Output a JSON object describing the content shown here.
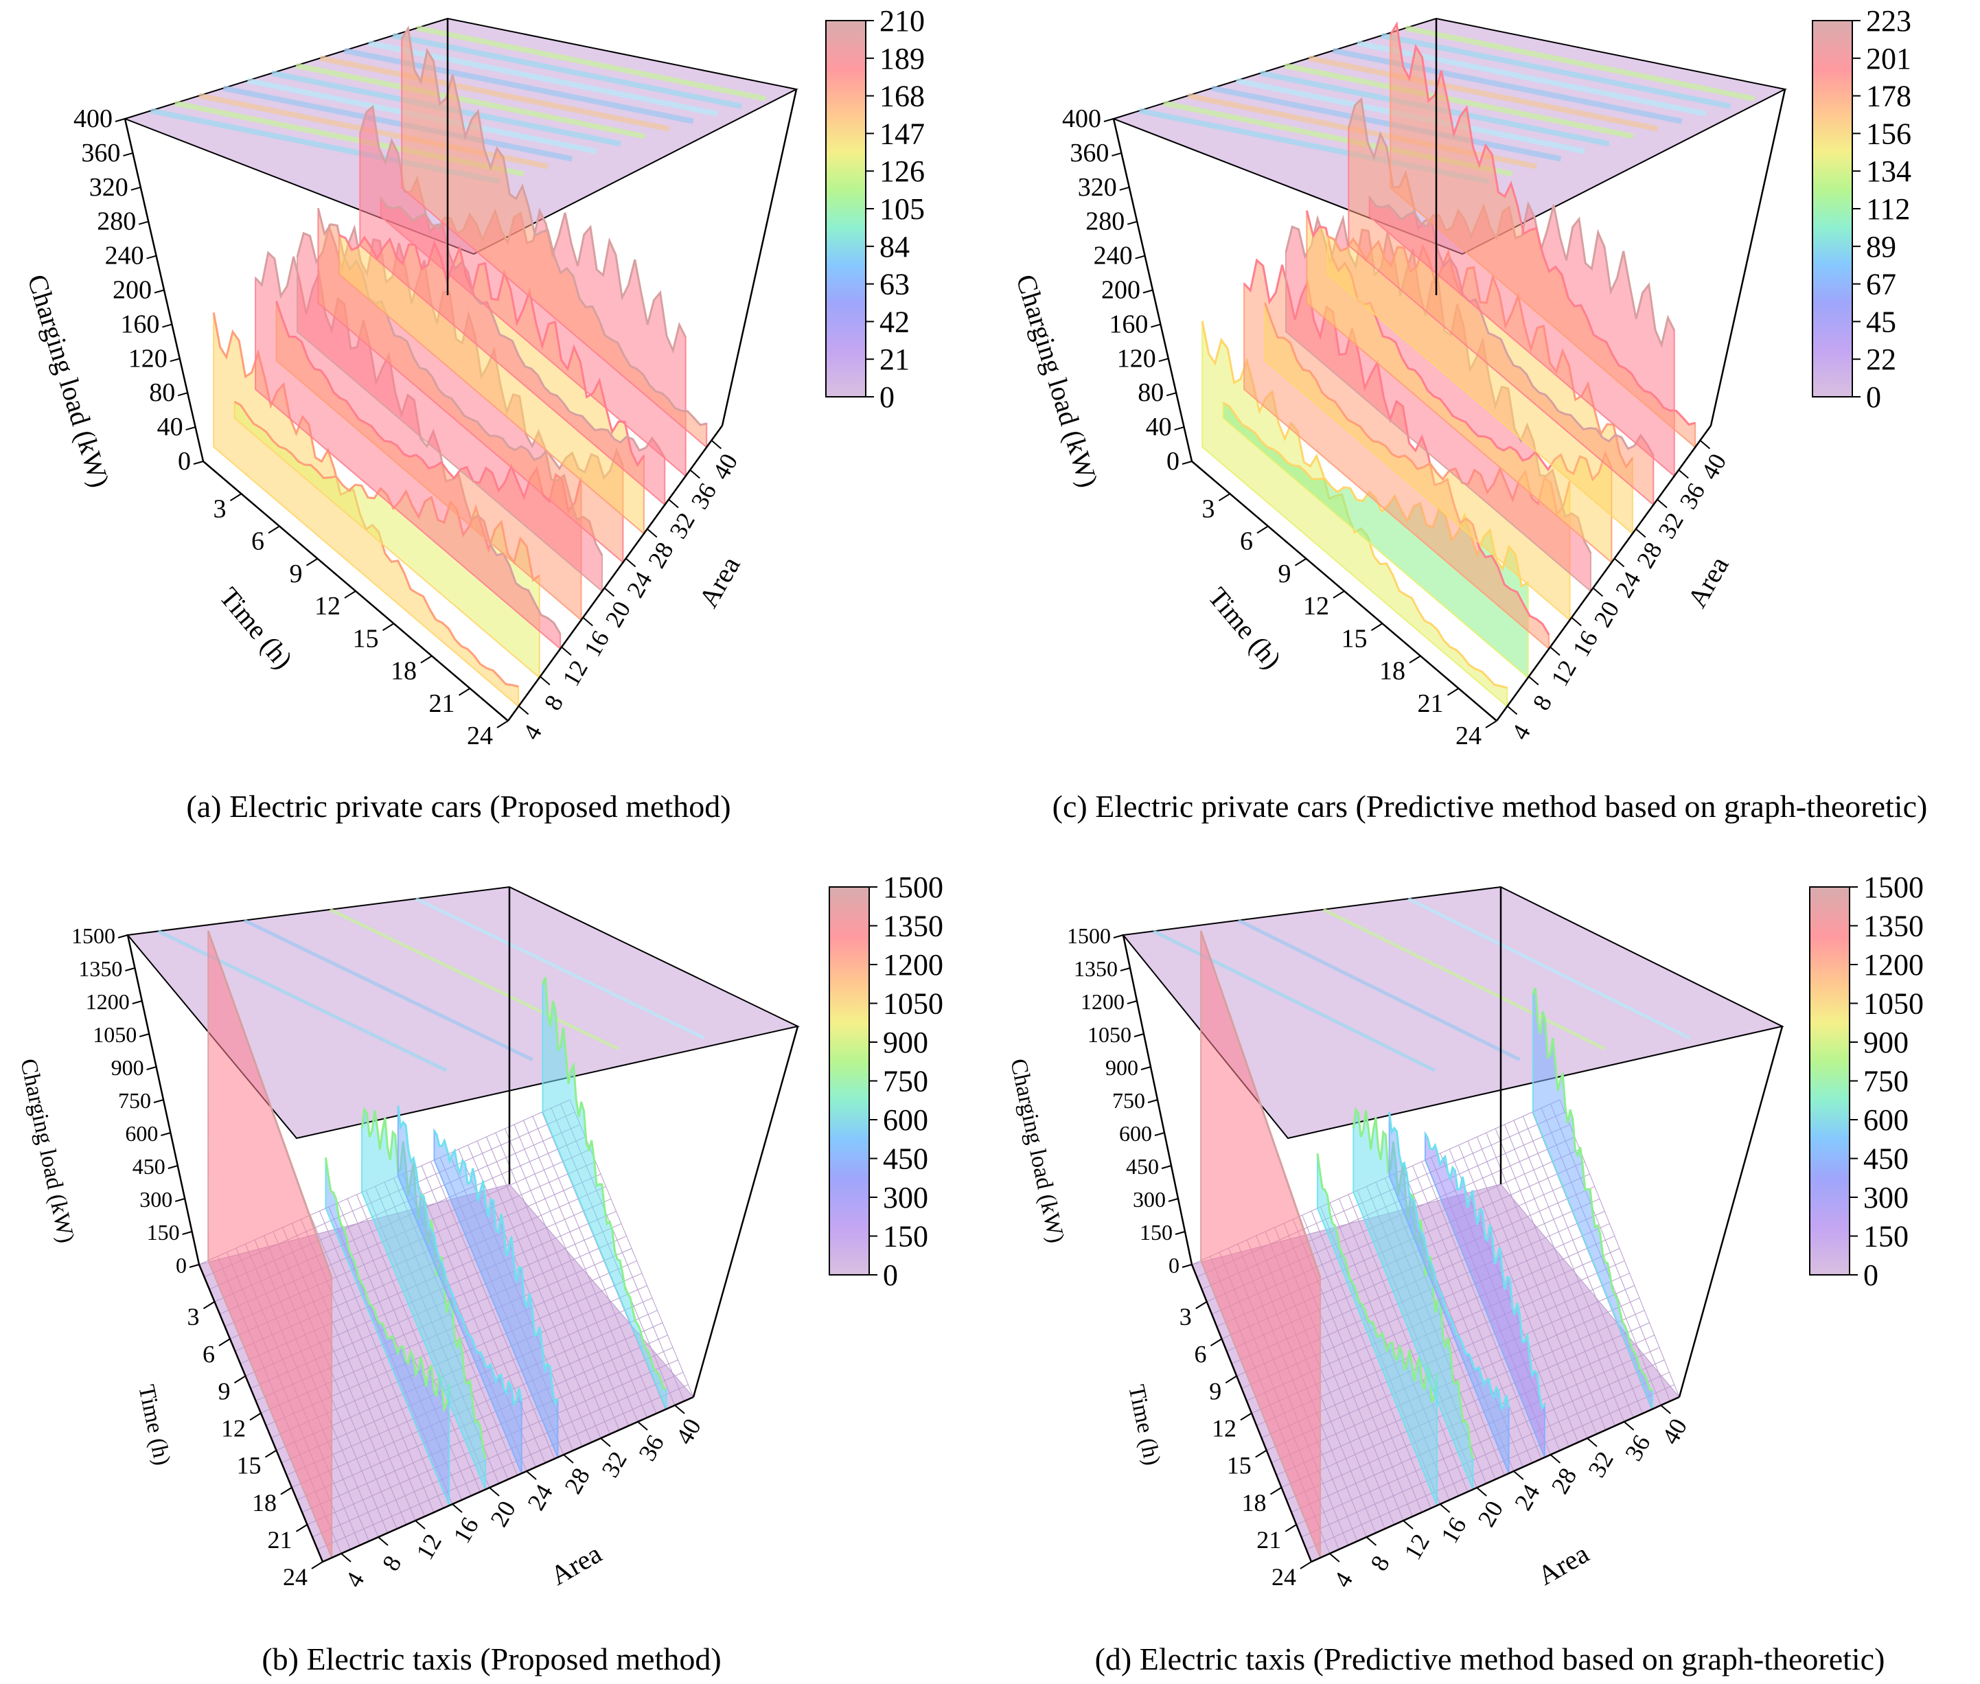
{
  "panels": [
    {
      "id": "a",
      "caption": "(a) Electric private cars (Proposed method)",
      "chart_data": {
        "type": "surface3d",
        "zlabel": "Charging load (kW)",
        "xlabel": "Time (h)",
        "ylabel": "Area",
        "zlim": [
          0,
          400
        ],
        "z_ticks": [
          "0",
          "40",
          "80",
          "120",
          "160",
          "200",
          "240",
          "280",
          "320",
          "360",
          "400"
        ],
        "time_ticks": [
          "3",
          "6",
          "9",
          "12",
          "15",
          "18",
          "21",
          "24"
        ],
        "area_ticks": [
          "4",
          "8",
          "12",
          "16",
          "20",
          "24",
          "28",
          "32",
          "36",
          "40"
        ],
        "colorbar": {
          "min": 0,
          "max": 210,
          "ticks": [
            "0",
            "21",
            "42",
            "63",
            "84",
            "105",
            "126",
            "147",
            "168",
            "189",
            "210"
          ]
        },
        "hidden_top_row_tick_values": [],
        "area_peaks": [
          {
            "area": 2,
            "peak": 160
          },
          {
            "area": 6,
            "peak": 150
          },
          {
            "area": 10,
            "peak": 200
          },
          {
            "area": 14,
            "peak": 180
          },
          {
            "area": 18,
            "peak": 210
          },
          {
            "area": 22,
            "peak": 190
          },
          {
            "area": 26,
            "peak": 170
          },
          {
            "area": 30,
            "peak": 200
          },
          {
            "area": 34,
            "peak": 205
          },
          {
            "area": 38,
            "peak": 195
          }
        ]
      }
    },
    {
      "id": "c",
      "caption": "(c) Electric private cars (Predictive method based on graph-theoretic)",
      "chart_data": {
        "type": "surface3d",
        "zlabel": "Charging load (kW)",
        "xlabel": "Time (h)",
        "ylabel": "Area",
        "zlim": [
          0,
          400
        ],
        "z_ticks": [
          "0",
          "40",
          "80",
          "120",
          "160",
          "200",
          "240",
          "280",
          "320",
          "360",
          "400"
        ],
        "time_ticks": [
          "3",
          "6",
          "9",
          "12",
          "15",
          "18",
          "21",
          "24"
        ],
        "area_ticks": [
          "4",
          "8",
          "12",
          "16",
          "20",
          "24",
          "28",
          "32",
          "36",
          "40"
        ],
        "colorbar": {
          "min": 0,
          "max": 223,
          "ticks": [
            "0",
            "22",
            "45",
            "67",
            "89",
            "112",
            "134",
            "156",
            "178",
            "201",
            "223"
          ]
        },
        "area_peaks": [
          {
            "area": 2,
            "peak": 150
          },
          {
            "area": 6,
            "peak": 140
          },
          {
            "area": 10,
            "peak": 190
          },
          {
            "area": 14,
            "peak": 175
          },
          {
            "area": 18,
            "peak": 223
          },
          {
            "area": 22,
            "peak": 185
          },
          {
            "area": 26,
            "peak": 165
          },
          {
            "area": 30,
            "peak": 210
          },
          {
            "area": 34,
            "peak": 215
          },
          {
            "area": 38,
            "peak": 200
          }
        ]
      }
    },
    {
      "id": "b",
      "caption": "(b) Electric taxis (Proposed method)",
      "chart_data": {
        "type": "surface3d",
        "zlabel": "Charging load (kW)",
        "xlabel": "Time (h)",
        "ylabel": "Area",
        "zlim": [
          0,
          1500
        ],
        "z_ticks": [
          "0",
          "150",
          "300",
          "450",
          "600",
          "750",
          "900",
          "1050",
          "1200",
          "1350",
          "1500"
        ],
        "time_ticks": [
          "3",
          "6",
          "9",
          "12",
          "15",
          "18",
          "21",
          "24"
        ],
        "area_ticks": [
          "4",
          "8",
          "12",
          "16",
          "20",
          "24",
          "28",
          "32",
          "36",
          "40"
        ],
        "colorbar": {
          "min": 0,
          "max": 1500,
          "ticks": [
            "0",
            "150",
            "300",
            "450",
            "600",
            "750",
            "900",
            "1050",
            "1200",
            "1350",
            "1500"
          ]
        },
        "area_peaks": [
          {
            "area": 1,
            "peak": 1500
          },
          {
            "area": 14,
            "peak": 600
          },
          {
            "area": 18,
            "peak": 700
          },
          {
            "area": 22,
            "peak": 550
          },
          {
            "area": 26,
            "peak": 500
          },
          {
            "area": 38,
            "peak": 650
          }
        ]
      }
    },
    {
      "id": "d",
      "caption": "(d)  Electric taxis (Predictive method based on graph-theoretic)",
      "chart_data": {
        "type": "surface3d",
        "zlabel": "Charging load (kW)",
        "xlabel": "Time (h)",
        "ylabel": "Area",
        "zlim": [
          0,
          1500
        ],
        "z_ticks": [
          "0",
          "150",
          "300",
          "450",
          "600",
          "750",
          "900",
          "1050",
          "1200",
          "1350",
          "1500"
        ],
        "time_ticks": [
          "3",
          "6",
          "9",
          "12",
          "15",
          "18",
          "21",
          "24"
        ],
        "area_ticks": [
          "4",
          "8",
          "12",
          "16",
          "20",
          "24",
          "28",
          "32",
          "36",
          "40"
        ],
        "colorbar": {
          "min": 0,
          "max": 1500,
          "ticks": [
            "0",
            "150",
            "300",
            "450",
            "600",
            "750",
            "900",
            "1050",
            "1200",
            "1350",
            "1500"
          ]
        },
        "area_peaks": [
          {
            "area": 1,
            "peak": 1500
          },
          {
            "area": 14,
            "peak": 650
          },
          {
            "area": 18,
            "peak": 700
          },
          {
            "area": 22,
            "peak": 500
          },
          {
            "area": 26,
            "peak": 450
          },
          {
            "area": 38,
            "peak": 600
          }
        ]
      }
    }
  ],
  "colors": {
    "scale": [
      "#d7b6d6",
      "#c9a0f0",
      "#9f8ff5",
      "#7fb0ff",
      "#6fe0f0",
      "#8cf08c",
      "#e8f070",
      "#ffd66a",
      "#ff9f7a",
      "#ff7f8f",
      "#d7a0a0"
    ],
    "frame": "#000000"
  }
}
